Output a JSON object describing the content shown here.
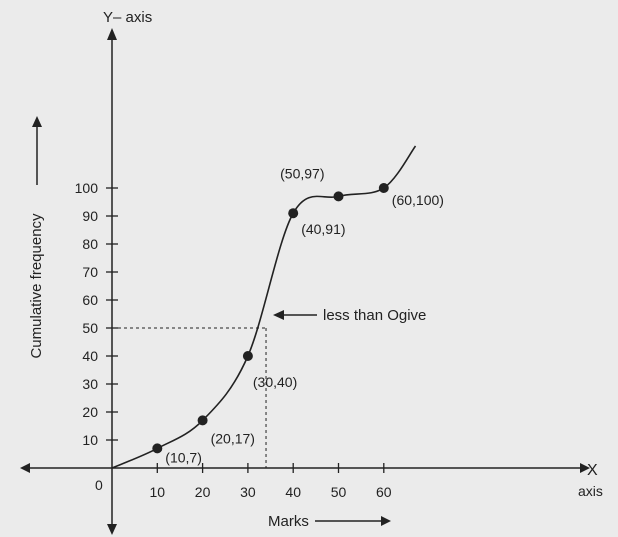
{
  "chart_data": {
    "type": "line",
    "title": "",
    "y_axis_title": "Y– axis",
    "x_axis_title_x": "X",
    "x_axis_title_axis": "axis",
    "origin_label": "0",
    "xlabel": "Marks",
    "ylabel": "Cumulative frequency",
    "xlim": [
      0,
      60
    ],
    "ylim": [
      0,
      100
    ],
    "x_ticks": [
      10,
      20,
      30,
      40,
      50,
      60
    ],
    "y_ticks": [
      10,
      20,
      30,
      40,
      50,
      60,
      70,
      80,
      90,
      100
    ],
    "series": [
      {
        "name": "less than Ogive",
        "points": [
          {
            "x": 10,
            "y": 7
          },
          {
            "x": 20,
            "y": 17
          },
          {
            "x": 30,
            "y": 40
          },
          {
            "x": 40,
            "y": 91
          },
          {
            "x": 50,
            "y": 97
          },
          {
            "x": 60,
            "y": 100
          }
        ]
      }
    ],
    "point_labels": [
      "(10,7)",
      "(20,17)",
      "(30,40)",
      "(40,91)",
      "(50,97)",
      "(60,100)"
    ],
    "median_guide": {
      "x": 34,
      "y": 50
    },
    "annotation": "less than Ogive",
    "grid": false,
    "colors": {
      "ink": "#222222",
      "background": "#ebebeb"
    }
  }
}
